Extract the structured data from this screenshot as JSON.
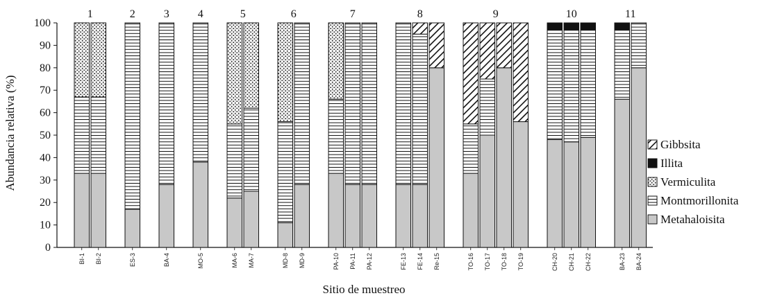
{
  "chart_data": {
    "type": "bar",
    "stacked": true,
    "xlabel": "Sitio de muestreo",
    "ylabel": "Abundancia relativa (%)",
    "ylim": [
      0,
      100
    ],
    "yticks": [
      0,
      10,
      20,
      30,
      40,
      50,
      60,
      70,
      80,
      90,
      100
    ],
    "grid": false,
    "legend_position": "right",
    "series_order": [
      "Metahaloisita",
      "Montmorillonita",
      "Vermiculita",
      "Illita",
      "Gibbsita"
    ],
    "legend": [
      {
        "name": "Gibbsita",
        "pattern": "diagonal",
        "color": "#111111"
      },
      {
        "name": "Illita",
        "pattern": "solid",
        "color": "#111111"
      },
      {
        "name": "Vermiculita",
        "pattern": "dots",
        "color": "#111111"
      },
      {
        "name": "Montmorillonita",
        "pattern": "horizontal",
        "color": "#111111"
      },
      {
        "name": "Metahaloisita",
        "pattern": "solid",
        "color": "#c8c8c8"
      }
    ],
    "groups": [
      {
        "label": "1",
        "samples": [
          {
            "name": "BI-1",
            "Metahaloisita": 33,
            "Montmorillonita": 34,
            "Vermiculita": 33,
            "Illita": 0,
            "Gibbsita": 0
          },
          {
            "name": "BI-2",
            "Metahaloisita": 33,
            "Montmorillonita": 34,
            "Vermiculita": 33,
            "Illita": 0,
            "Gibbsita": 0
          }
        ]
      },
      {
        "label": "2",
        "samples": [
          {
            "name": "ES-3",
            "Metahaloisita": 17,
            "Montmorillonita": 83,
            "Vermiculita": 0,
            "Illita": 0,
            "Gibbsita": 0
          }
        ]
      },
      {
        "label": "3",
        "samples": [
          {
            "name": "BA-4",
            "Metahaloisita": 28,
            "Montmorillonita": 72,
            "Vermiculita": 0,
            "Illita": 0,
            "Gibbsita": 0
          }
        ]
      },
      {
        "label": "4",
        "samples": [
          {
            "name": "MO-5",
            "Metahaloisita": 38,
            "Montmorillonita": 62,
            "Vermiculita": 0,
            "Illita": 0,
            "Gibbsita": 0
          }
        ]
      },
      {
        "label": "5",
        "samples": [
          {
            "name": "MA-6",
            "Metahaloisita": 22,
            "Montmorillonita": 33,
            "Vermiculita": 45,
            "Illita": 0,
            "Gibbsita": 0
          },
          {
            "name": "MA-7",
            "Metahaloisita": 25,
            "Montmorillonita": 37,
            "Vermiculita": 38,
            "Illita": 0,
            "Gibbsita": 0
          }
        ]
      },
      {
        "label": "6",
        "samples": [
          {
            "name": "MD-8",
            "Metahaloisita": 11,
            "Montmorillonita": 45,
            "Vermiculita": 44,
            "Illita": 0,
            "Gibbsita": 0
          },
          {
            "name": "MD-9",
            "Metahaloisita": 28,
            "Montmorillonita": 72,
            "Vermiculita": 0,
            "Illita": 0,
            "Gibbsita": 0
          }
        ]
      },
      {
        "label": "7",
        "samples": [
          {
            "name": "PA-10",
            "Metahaloisita": 33,
            "Montmorillonita": 33,
            "Vermiculita": 34,
            "Illita": 0,
            "Gibbsita": 0
          },
          {
            "name": "PA-11",
            "Metahaloisita": 28,
            "Montmorillonita": 72,
            "Vermiculita": 0,
            "Illita": 0,
            "Gibbsita": 0
          },
          {
            "name": "PA-12",
            "Metahaloisita": 28,
            "Montmorillonita": 72,
            "Vermiculita": 0,
            "Illita": 0,
            "Gibbsita": 0
          }
        ]
      },
      {
        "label": "8",
        "samples": [
          {
            "name": "FE-13",
            "Metahaloisita": 28,
            "Montmorillonita": 72,
            "Vermiculita": 0,
            "Illita": 0,
            "Gibbsita": 0
          },
          {
            "name": "FE-14",
            "Metahaloisita": 28,
            "Montmorillonita": 67,
            "Vermiculita": 0,
            "Illita": 0,
            "Gibbsita": 5
          },
          {
            "name": "Re-15",
            "Metahaloisita": 80,
            "Montmorillonita": 0,
            "Vermiculita": 0,
            "Illita": 0,
            "Gibbsita": 20
          }
        ]
      },
      {
        "label": "9",
        "samples": [
          {
            "name": "TO-16",
            "Metahaloisita": 33,
            "Montmorillonita": 22,
            "Vermiculita": 0,
            "Illita": 0,
            "Gibbsita": 45
          },
          {
            "name": "TO-17",
            "Metahaloisita": 50,
            "Montmorillonita": 25,
            "Vermiculita": 0,
            "Illita": 0,
            "Gibbsita": 25
          },
          {
            "name": "TO-18",
            "Metahaloisita": 80,
            "Montmorillonita": 0,
            "Vermiculita": 0,
            "Illita": 0,
            "Gibbsita": 20
          },
          {
            "name": "TO-19",
            "Metahaloisita": 56,
            "Montmorillonita": 0,
            "Vermiculita": 0,
            "Illita": 0,
            "Gibbsita": 44
          }
        ]
      },
      {
        "label": "10",
        "samples": [
          {
            "name": "CH-20",
            "Metahaloisita": 48,
            "Montmorillonita": 49,
            "Vermiculita": 0,
            "Illita": 3,
            "Gibbsita": 0
          },
          {
            "name": "CH-21",
            "Metahaloisita": 47,
            "Montmorillonita": 50,
            "Vermiculita": 0,
            "Illita": 3,
            "Gibbsita": 0
          },
          {
            "name": "CH-22",
            "Metahaloisita": 49,
            "Montmorillonita": 48,
            "Vermiculita": 0,
            "Illita": 3,
            "Gibbsita": 0
          }
        ]
      },
      {
        "label": "11",
        "samples": [
          {
            "name": "BA-23",
            "Metahaloisita": 66,
            "Montmorillonita": 31,
            "Vermiculita": 0,
            "Illita": 3,
            "Gibbsita": 0
          },
          {
            "name": "BA-24",
            "Metahaloisita": 80,
            "Montmorillonita": 20,
            "Vermiculita": 0,
            "Illita": 0,
            "Gibbsita": 0
          }
        ]
      }
    ]
  }
}
